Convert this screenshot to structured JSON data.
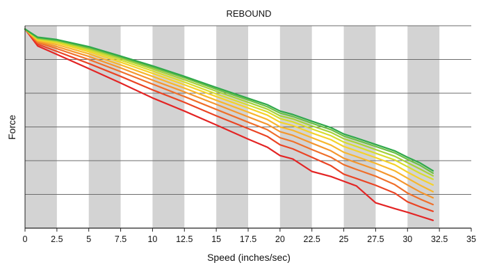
{
  "chart_data": {
    "type": "line",
    "title": "REBOUND",
    "xlabel": "Speed (inches/sec)",
    "ylabel": "Force",
    "xlim": [
      0,
      35
    ],
    "ylim": [
      0,
      6
    ],
    "x_ticks": [
      "0",
      "2.5",
      "5",
      "7.5",
      "10",
      "12.5",
      "15",
      "17.5",
      "20",
      "22.5",
      "25",
      "27.5",
      "30",
      "32.5",
      "35"
    ],
    "grid": true,
    "band_color": "#d3d3d3",
    "grid_color": "#6b6b6b",
    "series": [
      {
        "color": "#e32424",
        "x": [
          0,
          1,
          2.5,
          5,
          7.5,
          10,
          12.5,
          15,
          17.5,
          19,
          20,
          21,
          22.5,
          24,
          25,
          26,
          27.5,
          29,
          30,
          31,
          32
        ],
        "y": [
          5.9,
          5.4,
          5.15,
          4.73,
          4.3,
          3.86,
          3.47,
          3.06,
          2.64,
          2.4,
          2.15,
          2.05,
          1.68,
          1.53,
          1.39,
          1.25,
          0.75,
          0.58,
          0.47,
          0.35,
          0.23
        ]
      },
      {
        "color": "#ea4424",
        "x": [
          0,
          1,
          2.5,
          5,
          7.5,
          10,
          12.5,
          15,
          17.5,
          19,
          20,
          21,
          22.5,
          24,
          25,
          26,
          27.5,
          29,
          30,
          31,
          32
        ],
        "y": [
          5.9,
          5.45,
          5.24,
          4.88,
          4.5,
          4.1,
          3.73,
          3.33,
          2.95,
          2.72,
          2.47,
          2.35,
          2.1,
          1.85,
          1.6,
          1.47,
          1.27,
          1.04,
          0.78,
          0.63,
          0.5
        ]
      },
      {
        "color": "#ef6f2a",
        "x": [
          0,
          1,
          2.5,
          5,
          7.5,
          10,
          12.5,
          15,
          17.5,
          19,
          20,
          21,
          22.5,
          24,
          25,
          26,
          27.5,
          29,
          30,
          31,
          32
        ],
        "y": [
          5.9,
          5.5,
          5.32,
          5.0,
          4.64,
          4.27,
          3.9,
          3.52,
          3.14,
          2.92,
          2.68,
          2.57,
          2.33,
          2.1,
          1.88,
          1.74,
          1.54,
          1.29,
          1.04,
          0.86,
          0.7
        ]
      },
      {
        "color": "#f4952d",
        "x": [
          0,
          1,
          2.5,
          5,
          7.5,
          10,
          12.5,
          15,
          17.5,
          19,
          20,
          21,
          22.5,
          24,
          25,
          26,
          27.5,
          29,
          30,
          31,
          32
        ],
        "y": [
          5.9,
          5.53,
          5.38,
          5.09,
          4.75,
          4.39,
          4.04,
          3.67,
          3.3,
          3.08,
          2.86,
          2.75,
          2.52,
          2.29,
          2.07,
          1.94,
          1.74,
          1.5,
          1.28,
          1.07,
          0.9
        ]
      },
      {
        "color": "#f8b62c",
        "x": [
          0,
          1,
          2.5,
          5,
          7.5,
          10,
          12.5,
          15,
          17.5,
          19,
          20,
          21,
          22.5,
          24,
          25,
          26,
          27.5,
          29,
          30,
          31,
          32
        ],
        "y": [
          5.9,
          5.56,
          5.44,
          5.17,
          4.84,
          4.5,
          4.15,
          3.79,
          3.44,
          3.22,
          3.0,
          2.9,
          2.68,
          2.46,
          2.25,
          2.12,
          1.92,
          1.7,
          1.48,
          1.27,
          1.08
        ]
      },
      {
        "color": "#f5d22a",
        "x": [
          0,
          1,
          2.5,
          5,
          7.5,
          10,
          12.5,
          15,
          17.5,
          19,
          20,
          21,
          22.5,
          24,
          25,
          26,
          27.5,
          29,
          30,
          31,
          32
        ],
        "y": [
          5.9,
          5.58,
          5.49,
          5.23,
          4.92,
          4.59,
          4.25,
          3.9,
          3.56,
          3.35,
          3.14,
          3.04,
          2.82,
          2.62,
          2.42,
          2.29,
          2.09,
          1.88,
          1.66,
          1.46,
          1.28
        ]
      },
      {
        "color": "#d8dc2c",
        "x": [
          0,
          1,
          2.5,
          5,
          7.5,
          10,
          12.5,
          15,
          17.5,
          19,
          20,
          21,
          22.5,
          24,
          25,
          26,
          27.5,
          29,
          30,
          31,
          32
        ],
        "y": [
          5.9,
          5.6,
          5.52,
          5.28,
          4.98,
          4.66,
          4.33,
          3.98,
          3.65,
          3.45,
          3.25,
          3.15,
          2.94,
          2.74,
          2.55,
          2.42,
          2.22,
          2.02,
          1.82,
          1.62,
          1.45
        ]
      },
      {
        "color": "#a7d13a",
        "x": [
          0,
          1,
          2.5,
          5,
          7.5,
          10,
          12.5,
          15,
          17.5,
          19,
          20,
          21,
          22.5,
          24,
          25,
          26,
          27.5,
          29,
          30,
          31,
          32
        ],
        "y": [
          5.9,
          5.62,
          5.55,
          5.32,
          5.03,
          4.72,
          4.4,
          4.06,
          3.73,
          3.53,
          3.33,
          3.24,
          3.03,
          2.84,
          2.65,
          2.53,
          2.33,
          2.13,
          1.94,
          1.75,
          1.55
        ]
      },
      {
        "color": "#6cbf45",
        "x": [
          0,
          1,
          2.5,
          5,
          7.5,
          10,
          12.5,
          15,
          17.5,
          19,
          20,
          21,
          22.5,
          24,
          25,
          26,
          27.5,
          29,
          30,
          31,
          32
        ],
        "y": [
          5.9,
          5.64,
          5.57,
          5.35,
          5.07,
          4.77,
          4.46,
          4.12,
          3.8,
          3.6,
          3.41,
          3.31,
          3.11,
          2.92,
          2.73,
          2.61,
          2.42,
          2.23,
          2.04,
          1.86,
          1.63
        ]
      },
      {
        "color": "#2fa84a",
        "x": [
          0,
          1,
          2.5,
          5,
          7.5,
          10,
          12.5,
          15,
          17.5,
          19,
          20,
          21,
          22.5,
          24,
          25,
          26,
          27.5,
          29,
          30,
          31,
          32
        ],
        "y": [
          5.9,
          5.66,
          5.59,
          5.38,
          5.1,
          4.81,
          4.5,
          4.17,
          3.85,
          3.66,
          3.47,
          3.37,
          3.17,
          2.98,
          2.79,
          2.67,
          2.48,
          2.29,
          2.1,
          1.93,
          1.7
        ]
      }
    ]
  }
}
